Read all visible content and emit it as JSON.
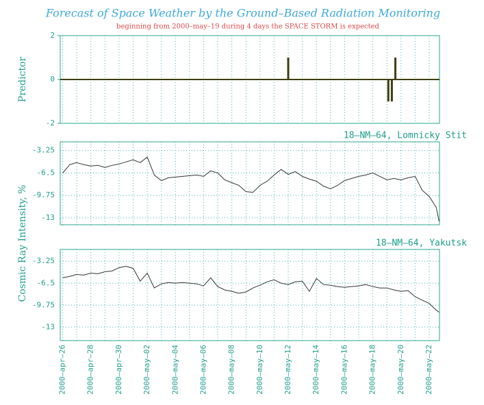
{
  "figure": {
    "title": "Forecast of Space Weather by the Ground–Based Radiation Monitoring",
    "subtitle": "beginning from 2000–may–19 during 4 days the SPACE STORM is expected",
    "ylabel": "Cosmic Ray Intensity, %"
  },
  "xaxis": {
    "xlim": [
      -0.17,
      26.73
    ],
    "xticks": [
      {
        "value": 0,
        "label": "2000–apr–26"
      },
      {
        "value": 2,
        "label": "2000–apr–28"
      },
      {
        "value": 4,
        "label": "2000–apr–30"
      },
      {
        "value": 6,
        "label": "2000–may–02"
      },
      {
        "value": 8,
        "label": "2000–may–04"
      },
      {
        "value": 10,
        "label": "2000–may–06"
      },
      {
        "value": 12,
        "label": "2000–may–08"
      },
      {
        "value": 14,
        "label": "2000–may–10"
      },
      {
        "value": 16,
        "label": "2000–may–12"
      },
      {
        "value": 18,
        "label": "2000–may–14"
      },
      {
        "value": 20,
        "label": "2000–may–16"
      },
      {
        "value": 22,
        "label": "2000–may–18"
      },
      {
        "value": 24,
        "label": "2000–may–20"
      },
      {
        "value": 26,
        "label": "2000–may–22"
      }
    ],
    "xminorticks": [
      1,
      3,
      5,
      7,
      9,
      11,
      13,
      15,
      17,
      19,
      21,
      23,
      25
    ]
  },
  "chart_data": [
    {
      "type": "bar",
      "ylabel": "Predictor",
      "x": [
        16.0,
        23.1,
        23.35,
        23.6
      ],
      "values": [
        1,
        -1,
        -1,
        1
      ],
      "color": "#3d3d10",
      "ylim": [
        -2,
        2
      ],
      "yticks": [
        2,
        0,
        -2
      ]
    },
    {
      "type": "line",
      "title": "18–NM–64, Lomnicky Stit",
      "color": "#333333",
      "ylim": [
        -14,
        -2
      ],
      "yticks": [
        -3.25,
        -6.5,
        -9.75,
        -13
      ],
      "x": [
        0,
        0.5,
        1,
        1.5,
        2,
        2.5,
        3,
        3.5,
        4,
        4.5,
        5,
        5.5,
        6,
        6.5,
        7,
        7.5,
        8,
        8.5,
        9,
        9.5,
        10,
        10.5,
        11,
        11.5,
        12,
        12.5,
        13,
        13.5,
        14,
        14.5,
        15,
        15.5,
        16,
        16.5,
        17,
        17.5,
        18,
        18.5,
        19,
        19.5,
        20,
        20.5,
        21,
        21.5,
        22,
        22.5,
        23,
        23.5,
        24,
        24.5,
        25,
        25.5,
        26,
        26.5,
        26.7
      ],
      "values": [
        -6.5,
        -5.3,
        -5.0,
        -5.3,
        -5.5,
        -5.4,
        -5.7,
        -5.4,
        -5.2,
        -4.9,
        -4.6,
        -5.0,
        -4.2,
        -6.8,
        -7.6,
        -7.2,
        -7.1,
        -7.0,
        -6.9,
        -6.8,
        -7.0,
        -6.2,
        -6.5,
        -7.5,
        -7.9,
        -8.3,
        -9.2,
        -9.3,
        -8.3,
        -7.7,
        -6.8,
        -6.0,
        -6.7,
        -6.3,
        -7.0,
        -7.4,
        -7.7,
        -8.4,
        -8.8,
        -8.3,
        -7.6,
        -7.3,
        -7.0,
        -6.8,
        -6.5,
        -7.0,
        -7.5,
        -7.3,
        -7.5,
        -7.2,
        -7.0,
        -9.0,
        -9.9,
        -11.5,
        -13.5
      ]
    },
    {
      "type": "line",
      "title": "18–NM–64, Yakutsk",
      "color": "#333333",
      "ylim": [
        -15,
        -1.5
      ],
      "yticks": [
        -3.25,
        -6.5,
        -9.75,
        -13
      ],
      "x": [
        0,
        0.5,
        1,
        1.5,
        2,
        2.5,
        3,
        3.5,
        4,
        4.5,
        5,
        5.5,
        6,
        6.5,
        7,
        7.5,
        8,
        8.5,
        9,
        9.5,
        10,
        10.5,
        11,
        11.5,
        12,
        12.5,
        13,
        13.5,
        14,
        14.5,
        15,
        15.5,
        16,
        16.5,
        17,
        17.5,
        18,
        18.5,
        19,
        19.5,
        20,
        20.5,
        21,
        21.5,
        22,
        22.5,
        23,
        23.5,
        24,
        24.5,
        25,
        25.5,
        26,
        26.5,
        26.7
      ],
      "values": [
        -5.7,
        -5.5,
        -5.2,
        -5.3,
        -5.0,
        -5.1,
        -4.8,
        -4.7,
        -4.2,
        -4.0,
        -4.3,
        -6.2,
        -5.0,
        -7.2,
        -6.6,
        -6.4,
        -6.5,
        -6.4,
        -6.5,
        -6.6,
        -6.9,
        -5.7,
        -7.0,
        -7.5,
        -7.7,
        -8.0,
        -7.8,
        -7.2,
        -6.8,
        -6.3,
        -6.0,
        -6.5,
        -6.7,
        -6.3,
        -6.2,
        -7.7,
        -5.8,
        -6.7,
        -6.8,
        -7.0,
        -7.1,
        -7.0,
        -6.9,
        -6.7,
        -7.0,
        -7.2,
        -7.2,
        -7.5,
        -7.7,
        -7.6,
        -8.5,
        -9.0,
        -9.5,
        -10.5,
        -10.8
      ]
    }
  ]
}
